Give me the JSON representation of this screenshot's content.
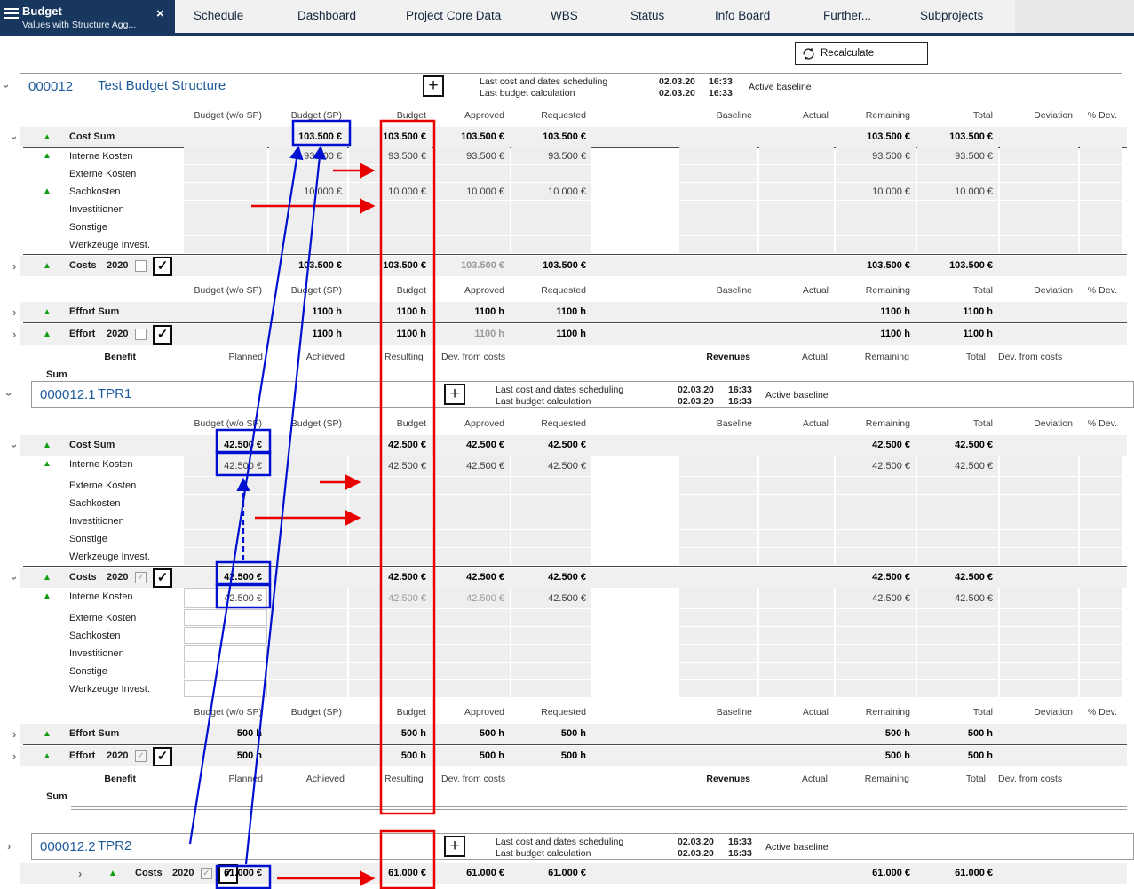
{
  "colors": {
    "navy": "#17375e",
    "accent_blue_text": "#1d5a9c",
    "green_indicator": "#109c10",
    "annotation_blue": "#0010d0",
    "annotation_red": "#e80000",
    "band_gray": "#f0f0f0",
    "cell_gray": "#eeeeee"
  },
  "nav": {
    "active_tab": {
      "title": "Budget",
      "subtitle": "Values with Structure Agg...",
      "close_icon": "×",
      "menu_icon": "hamburger"
    },
    "tabs": [
      {
        "label": "Schedule"
      },
      {
        "label": "Dashboard"
      },
      {
        "label": "Project Core Data"
      },
      {
        "label": "WBS"
      },
      {
        "label": "Status"
      },
      {
        "label": "Info Board"
      },
      {
        "label": "Further..."
      },
      {
        "label": "Subprojects"
      }
    ]
  },
  "toolbar": {
    "recalculate_label": "Recalculate",
    "recalculate_icon": "refresh-icon"
  },
  "meta": {
    "scheduling_label": "Last cost and dates scheduling",
    "calculation_label": "Last budget calculation",
    "date": "02.03.20",
    "time": "16:33",
    "baseline_label": "Active baseline"
  },
  "column_headers": [
    "Budget (w/o SP)",
    "Budget (SP)",
    "Budget",
    "Approved",
    "Requested",
    "Baseline",
    "Actual",
    "Remaining",
    "Total",
    "Deviation",
    "% Dev."
  ],
  "benefit_headers": {
    "left": [
      "Benefit",
      "Planned",
      "Achieved",
      "Resulting",
      "Dev. from costs"
    ],
    "right": [
      "Revenues",
      "Actual",
      "Remaining",
      "Total",
      "Dev. from costs"
    ]
  },
  "sum_label": "Sum",
  "checkmark": "✓",
  "projects": [
    {
      "id": "000012",
      "name": "Test Budget Structure",
      "chevron": "down",
      "double_end": true,
      "rows": [
        {
          "t": "ch"
        },
        {
          "t": "sum",
          "chev": "down",
          "tri": true,
          "label": "Cost Sum",
          "line_below": true,
          "v": {
            "sp": "103.500 €",
            "budget": "103.500 €",
            "approved": "103.500 €",
            "requested": "103.500 €",
            "remaining": "103.500 €",
            "total": "103.500 €"
          }
        },
        {
          "t": "sub",
          "tri": true,
          "label": "Interne Kosten",
          "v": {
            "sp": "93.500 €",
            "budget": "93.500 €",
            "approved": "93.500 €",
            "requested": "93.500 €",
            "remaining": "93.500 €",
            "total": "93.500 €"
          }
        },
        {
          "t": "sub",
          "label": "Externe Kosten",
          "v": {}
        },
        {
          "t": "sub",
          "tri": true,
          "label": "Sachkosten",
          "v": {
            "sp": "10.000 €",
            "budget": "10.000 €",
            "approved": "10.000 €",
            "requested": "10.000 €",
            "remaining": "10.000 €",
            "total": "10.000 €"
          }
        },
        {
          "t": "sub",
          "label": "Investitionen",
          "v": {}
        },
        {
          "t": "sub",
          "label": "Sonstige",
          "v": {}
        },
        {
          "t": "sub",
          "label": "Werkzeuge Invest.",
          "v": {}
        },
        {
          "t": "sum",
          "chev": "right",
          "tri": true,
          "label": "Costs",
          "year": "2020",
          "cb1": "empty",
          "cb2": "checked",
          "line_above": true,
          "gray": [
            "approved"
          ],
          "v": {
            "sp": "103.500 €",
            "budget": "103.500 €",
            "approved": "103.500 €",
            "requested": "103.500 €",
            "remaining": "103.500 €",
            "total": "103.500 €"
          }
        },
        {
          "t": "ch"
        },
        {
          "t": "sum",
          "chev": "right",
          "tri": true,
          "label": "Effort Sum",
          "v": {
            "sp": "1100 h",
            "budget": "1100 h",
            "approved": "1100 h",
            "requested": "1100 h",
            "remaining": "1100 h",
            "total": "1100 h"
          }
        },
        {
          "t": "sum",
          "chev": "right",
          "tri": true,
          "label": "Effort",
          "year": "2020",
          "cb1": "empty",
          "cb2": "checked",
          "line_above": true,
          "gray": [
            "approved"
          ],
          "v": {
            "sp": "1100 h",
            "budget": "1100 h",
            "approved": "1100 h",
            "requested": "1100 h",
            "remaining": "1100 h",
            "total": "1100 h"
          }
        },
        {
          "t": "benefit"
        },
        {
          "t": "sumlabel"
        }
      ]
    },
    {
      "id": "000012.1",
      "name": "TPR1",
      "chevron": "down",
      "double_end": true,
      "rows": [
        {
          "t": "ch"
        },
        {
          "t": "sum",
          "chev": "down",
          "tri": true,
          "label": "Cost Sum",
          "line_below": true,
          "v": {
            "wosp": "42.500 €",
            "budget": "42.500 €",
            "approved": "42.500 €",
            "requested": "42.500 €",
            "remaining": "42.500 €",
            "total": "42.500 €"
          }
        },
        {
          "t": "sub",
          "tri": true,
          "tall": true,
          "label": "Interne Kosten",
          "v": {
            "wosp": "42.500 €",
            "budget": "42.500 €",
            "approved": "42.500 €",
            "requested": "42.500 €",
            "remaining": "42.500 €",
            "total": "42.500 €"
          }
        },
        {
          "t": "sub",
          "label": "Externe Kosten",
          "v": {}
        },
        {
          "t": "sub",
          "label": "Sachkosten",
          "v": {}
        },
        {
          "t": "sub",
          "label": "Investitionen",
          "v": {}
        },
        {
          "t": "sub",
          "label": "Sonstige",
          "v": {}
        },
        {
          "t": "sub",
          "label": "Werkzeuge Invest.",
          "v": {}
        },
        {
          "t": "sum",
          "chev": "down",
          "tri": true,
          "label": "Costs",
          "year": "2020",
          "cb1": "graycheck",
          "cb2": "checked",
          "line_above": true,
          "v": {
            "wosp": "42.500 €",
            "budget": "42.500 €",
            "approved": "42.500 €",
            "requested": "42.500 €",
            "remaining": "42.500 €",
            "total": "42.500 €"
          }
        },
        {
          "t": "sub",
          "tri": true,
          "tall": true,
          "edit": true,
          "label": "Interne Kosten",
          "gray": [
            "budget",
            "approved"
          ],
          "v": {
            "wosp": "42.500 €",
            "budget": "42.500 €",
            "approved": "42.500 €",
            "requested": "42.500 €",
            "remaining": "42.500 €",
            "total": "42.500 €"
          }
        },
        {
          "t": "sub",
          "edit": true,
          "label": "Externe Kosten",
          "v": {}
        },
        {
          "t": "sub",
          "edit": true,
          "label": "Sachkosten",
          "v": {}
        },
        {
          "t": "sub",
          "edit": true,
          "label": "Investitionen",
          "v": {}
        },
        {
          "t": "sub",
          "edit": true,
          "label": "Sonstige",
          "v": {}
        },
        {
          "t": "sub",
          "edit": true,
          "label": "Werkzeuge Invest.",
          "v": {}
        },
        {
          "t": "ch"
        },
        {
          "t": "sum",
          "chev": "right",
          "tri": true,
          "label": "Effort Sum",
          "v": {
            "wosp": "500 h",
            "budget": "500 h",
            "approved": "500 h",
            "requested": "500 h",
            "remaining": "500 h",
            "total": "500 h"
          }
        },
        {
          "t": "sum",
          "chev": "right",
          "tri": true,
          "label": "Effort",
          "year": "2020",
          "cb1": "graycheck",
          "cb2": "checked",
          "line_above": true,
          "v": {
            "wosp": "500 h",
            "budget": "500 h",
            "approved": "500 h",
            "requested": "500 h",
            "remaining": "500 h",
            "total": "500 h"
          }
        },
        {
          "t": "benefit"
        },
        {
          "t": "sumlabel"
        }
      ]
    },
    {
      "id": "000012.2",
      "name": "TPR2",
      "chevron": "right",
      "double_end": false,
      "rows": [
        {
          "t": "sum",
          "chev": "right",
          "tri": true,
          "indent": 74,
          "label": "Costs",
          "year": "2020",
          "cb1": "graycheck",
          "cb2": "checked",
          "v": {
            "wosp": "61.000 €",
            "budget": "61.000 €",
            "approved": "61.000 €",
            "requested": "61.000 €",
            "remaining": "61.000 €",
            "total": "61.000 €"
          }
        }
      ]
    }
  ]
}
